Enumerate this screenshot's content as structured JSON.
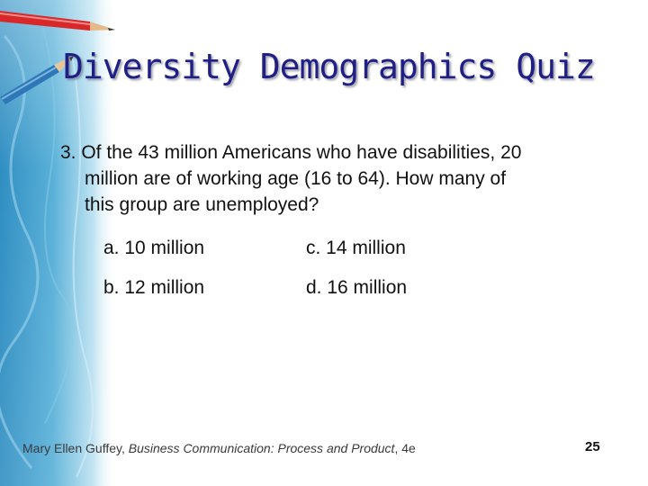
{
  "slide": {
    "title": "Diversity Demographics Quiz",
    "question": {
      "lines": [
        "3. Of the 43 million Americans who have disabilities, 20",
        "million are of working age (16 to 64). How many of",
        "this group are unemployed?"
      ]
    },
    "options": {
      "a": "a. 10 million",
      "b": "b. 12 million",
      "c": "c. 14 million",
      "d": "d. 16 million"
    },
    "footer": {
      "author": "Mary Ellen Guffey, ",
      "book": "Business Communication: Process and Product",
      "edition": ", 4e"
    },
    "page_number": "25"
  },
  "colors": {
    "title": "#1f1f86",
    "band_blue": "#3f9ccc",
    "band_light": "#bfe3f2",
    "pencil_red": "#d8282a",
    "pencil_blue": "#2f78b8"
  },
  "icons": [
    "red-pencil-icon",
    "blue-pencil-icon"
  ]
}
